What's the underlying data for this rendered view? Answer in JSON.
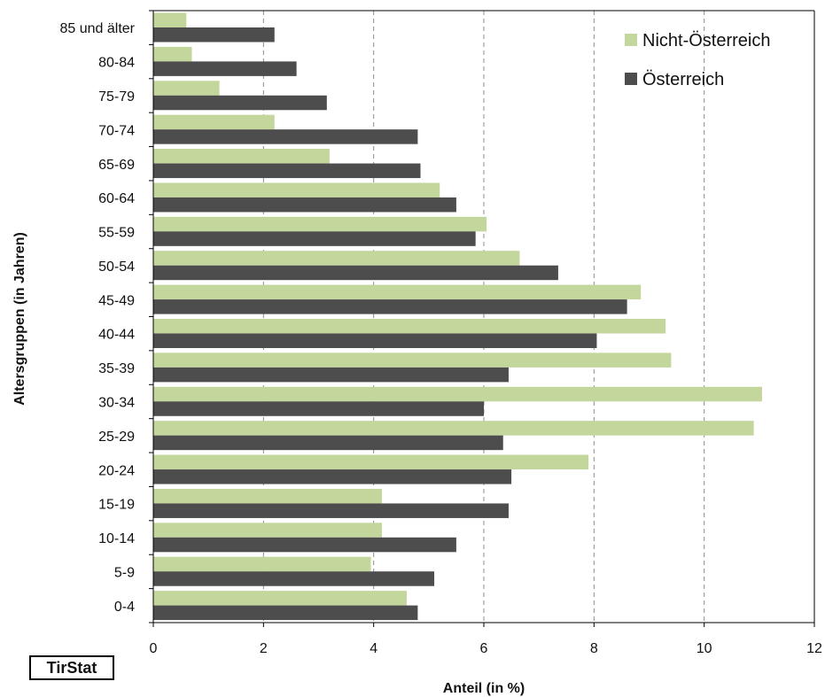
{
  "chart_data": {
    "type": "bar",
    "orientation": "horizontal",
    "categories": [
      "85 und älter",
      "80-84",
      "75-79",
      "70-74",
      "65-69",
      "60-64",
      "55-59",
      "50-54",
      "45-49",
      "40-44",
      "35-39",
      "30-34",
      "25-29",
      "20-24",
      "15-19",
      "10-14",
      "5-9",
      "0-4"
    ],
    "series": [
      {
        "name": "Nicht-Österreich",
        "color": "#c3d69b",
        "values": [
          0.6,
          0.7,
          1.2,
          2.2,
          3.2,
          5.2,
          6.05,
          6.65,
          8.85,
          9.3,
          9.4,
          11.05,
          10.9,
          7.9,
          4.15,
          4.15,
          3.95,
          4.6
        ]
      },
      {
        "name": "Österreich",
        "color": "#4d4d4d",
        "values": [
          2.2,
          2.6,
          3.15,
          4.8,
          4.85,
          5.5,
          5.85,
          7.35,
          8.6,
          8.05,
          6.45,
          6.0,
          6.35,
          6.5,
          6.45,
          5.5,
          5.1,
          4.8
        ]
      }
    ],
    "xlabel": "Anteil (in %)",
    "ylabel": "Altersgruppen (in Jahren)",
    "xlim": [
      0,
      12
    ],
    "xticks": [
      0,
      2,
      4,
      6,
      8,
      10,
      12
    ],
    "grid": "vertical dashed",
    "legend_position": "top-right"
  },
  "logo_text": "TirStat"
}
